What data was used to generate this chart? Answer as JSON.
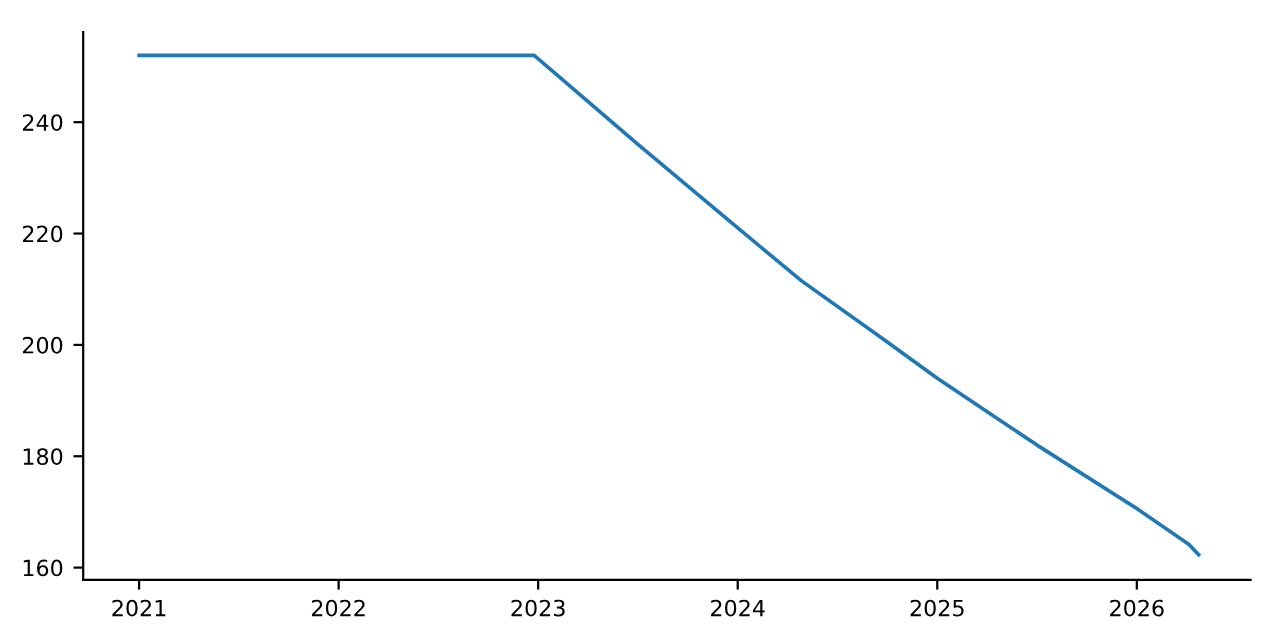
{
  "chart_data": {
    "type": "line",
    "x": [
      2021,
      2022,
      2022.98,
      2023.5,
      2024,
      2024.32,
      2024.72,
      2025,
      2025.5,
      2026,
      2026.26,
      2026.31
    ],
    "series": [
      {
        "color": "#1f77b4",
        "values": [
          252,
          252,
          252,
          236,
          221,
          211.5,
          201.3,
          194,
          182,
          170.6,
          164.2,
          162.3
        ]
      }
    ],
    "xlim": [
      2020.72,
      2026.57
    ],
    "xticks": [
      2021,
      2022,
      2023,
      2024,
      2025,
      2026
    ],
    "ylim": [
      157.8,
      256.2
    ],
    "yticks": [
      160,
      180,
      200,
      220,
      240
    ],
    "grid": false,
    "legend": false,
    "marker": "none",
    "line_style": "solid"
  }
}
